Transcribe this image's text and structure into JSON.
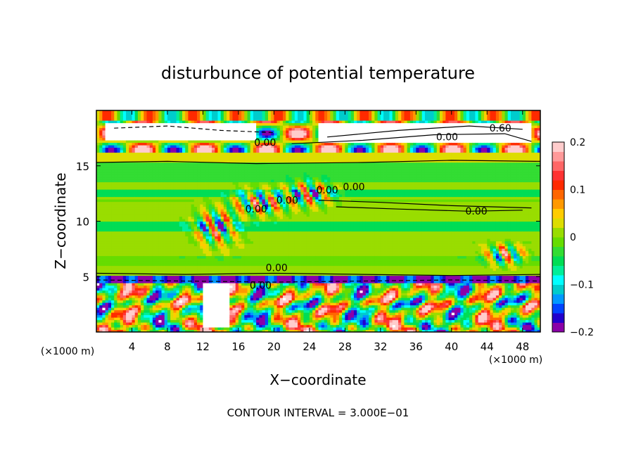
{
  "chart_data": {
    "type": "heatmap",
    "title": "disturbunce of potential temperature",
    "xlabel": "X−coordinate",
    "ylabel": "Z−coordinate",
    "x_unit_left": "(×1000 m)",
    "x_unit_right": "(×1000 m)",
    "x_ticks": [
      "4",
      "8",
      "12",
      "16",
      "20",
      "24",
      "28",
      "32",
      "36",
      "40",
      "44",
      "48"
    ],
    "y_ticks": [
      "5",
      "10",
      "15"
    ],
    "xlim": [
      0,
      50
    ],
    "ylim": [
      0,
      20
    ],
    "contour_interval_text": "CONTOUR INTERVAL = 3.000E−01",
    "contour_labels": [
      {
        "text": "0.00",
        "x": 19,
        "z": 16.8
      },
      {
        "text": "0.00",
        "x": 39.5,
        "z": 17.3
      },
      {
        "text": "0.60",
        "x": 45.5,
        "z": 18.1
      },
      {
        "text": "0.00",
        "x": 29,
        "z": 12.8
      },
      {
        "text": "0.00",
        "x": 26,
        "z": 12.5
      },
      {
        "text": "0.00",
        "x": 21.5,
        "z": 11.6
      },
      {
        "text": "0.00",
        "x": 18,
        "z": 10.8
      },
      {
        "text": "0.00",
        "x": 42.8,
        "z": 10.6
      },
      {
        "text": "0.00",
        "x": 20.3,
        "z": 5.5
      },
      {
        "text": "0.00",
        "x": 18.5,
        "z": 3.9
      }
    ],
    "colorbar": {
      "min": -0.2,
      "max": 0.2,
      "tick_values": [
        0.2,
        0.1,
        0,
        -0.1,
        -0.2
      ],
      "tick_labels": [
        "0.2",
        "0.1",
        "0",
        "−0.1",
        "−0.2"
      ],
      "colors": [
        "#8a00a8",
        "#2200cc",
        "#0044ff",
        "#0099ff",
        "#00cccc",
        "#00ffff",
        "#00ee99",
        "#00dd55",
        "#33dd33",
        "#66dd00",
        "#99dd00",
        "#dddd00",
        "#ffcc00",
        "#ff9900",
        "#ff6600",
        "#ff2a00",
        "#ff3333",
        "#ff6666",
        "#ff9999",
        "#ffcccc"
      ]
    },
    "grid": false
  }
}
